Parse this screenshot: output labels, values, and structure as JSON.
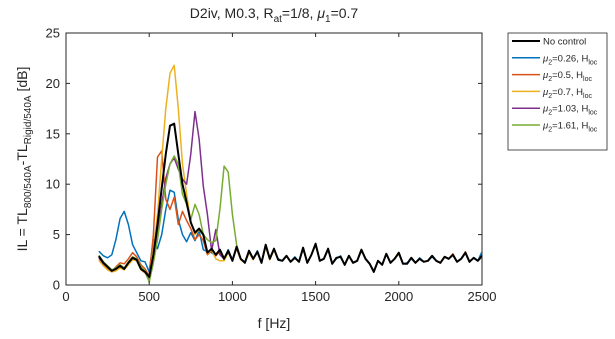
{
  "chart_data": {
    "type": "line",
    "title": {
      "prefix": "D2iv, M0.3, R",
      "sub": "at",
      "middle": "=1/8, ",
      "mu": "μ",
      "mu_sub": "1",
      "suffix": "=0.7"
    },
    "xlabel": "f [Hz]",
    "ylabel": {
      "p1": "IL = TL",
      "s1": "800/540A",
      "p2": "-TL",
      "s2": "Rigid/540A",
      "p3": " [dB]"
    },
    "xlim": [
      0,
      2500
    ],
    "ylim": [
      0,
      25
    ],
    "x_ticks": [
      "0",
      "500",
      "1000",
      "1500",
      "2000",
      "2500"
    ],
    "y_ticks": [
      "0",
      "5",
      "10",
      "15",
      "20",
      "25"
    ],
    "grid": false,
    "legend_position": "outside-right",
    "x": [
      200,
      225,
      250,
      275,
      300,
      325,
      350,
      375,
      400,
      425,
      450,
      475,
      500,
      525,
      550,
      575,
      600,
      625,
      650,
      675,
      700,
      725,
      750,
      775,
      800,
      825,
      850,
      875,
      900,
      925,
      950,
      975,
      1000,
      1025,
      1050,
      1075,
      1100,
      1125,
      1150,
      1175,
      1200,
      1225,
      1250,
      1275,
      1300,
      1325,
      1350,
      1375,
      1400,
      1425,
      1450,
      1475,
      1500,
      1525,
      1550,
      1575,
      1600,
      1625,
      1650,
      1675,
      1700,
      1725,
      1750,
      1775,
      1800,
      1825,
      1850,
      1875,
      1900,
      1925,
      1950,
      1975,
      2000,
      2025,
      2050,
      2075,
      2100,
      2125,
      2150,
      2175,
      2200,
      2225,
      2250,
      2275,
      2300,
      2325,
      2350,
      2375,
      2400,
      2425,
      2450,
      2475,
      2500
    ],
    "series": [
      {
        "name": "No control",
        "color": "#000000",
        "width": 2,
        "values": [
          2.8,
          2.2,
          1.8,
          1.4,
          1.6,
          1.9,
          1.6,
          2.2,
          2.7,
          2.5,
          1.6,
          1.3,
          0.8,
          3.0,
          6.0,
          9.6,
          13.0,
          15.8,
          16.0,
          13.0,
          10.0,
          8.2,
          6.2,
          5.2,
          5.6,
          5.0,
          3.2,
          3.6,
          3.0,
          3.5,
          2.6,
          3.4,
          2.4,
          3.8,
          2.6,
          2.2,
          3.4,
          2.6,
          3.3,
          2.2,
          4.0,
          2.6,
          3.6,
          2.5,
          2.4,
          2.9,
          2.3,
          2.7,
          2.3,
          3.7,
          2.2,
          3.0,
          4.1,
          2.4,
          2.6,
          3.6,
          2.1,
          2.7,
          2.8,
          2.0,
          2.9,
          2.2,
          2.4,
          3.5,
          2.6,
          2.1,
          1.3,
          2.4,
          2.0,
          3.1,
          2.2,
          2.6,
          3.2,
          2.1,
          2.1,
          2.7,
          2.2,
          2.6,
          2.3,
          2.4,
          2.9,
          2.4,
          2.2,
          2.8,
          2.6,
          3.0,
          2.3,
          2.6,
          3.2,
          2.3,
          2.7,
          2.4,
          2.9
        ]
      },
      {
        "name": "μ2=0.26, Hloc",
        "label": {
          "pre": "=0.26, H"
        },
        "color": "#0072BD",
        "width": 1.5,
        "values": [
          3.3,
          2.9,
          2.7,
          3.0,
          4.5,
          6.6,
          7.3,
          6.0,
          4.0,
          3.2,
          2.4,
          2.3,
          1.3,
          4.5,
          3.6,
          5.0,
          7.5,
          9.4,
          9.2,
          6.5,
          5.0,
          4.3,
          5.2,
          4.4,
          5.4,
          3.5,
          3.3,
          3.2,
          2.9,
          3.4,
          2.6,
          3.5,
          2.5,
          3.7,
          2.6,
          2.3,
          3.3,
          2.6,
          3.4,
          2.2,
          3.9,
          2.6,
          3.5,
          2.6,
          2.4,
          2.9,
          2.3,
          2.8,
          2.3,
          3.6,
          2.2,
          3.0,
          4.0,
          2.4,
          2.6,
          3.5,
          2.1,
          2.6,
          2.9,
          2.0,
          2.9,
          2.2,
          2.4,
          3.4,
          2.6,
          2.1,
          1.4,
          2.4,
          2.0,
          3.1,
          2.2,
          2.6,
          3.1,
          2.1,
          2.2,
          2.6,
          2.2,
          2.7,
          2.3,
          2.4,
          2.8,
          2.4,
          2.2,
          2.8,
          2.6,
          3.0,
          2.3,
          2.6,
          3.2,
          2.3,
          2.7,
          2.4,
          3.3
        ]
      },
      {
        "name": "μ2=0.5, Hloc",
        "label": {
          "pre": "=0.5, H"
        },
        "color": "#D95319",
        "width": 1.5,
        "values": [
          2.6,
          2.0,
          1.6,
          1.3,
          1.8,
          2.2,
          2.1,
          2.6,
          3.2,
          2.8,
          2.0,
          1.6,
          0.9,
          5.0,
          12.7,
          13.3,
          8.5,
          7.5,
          8.7,
          6.0,
          7.3,
          6.4,
          5.6,
          4.5,
          5.0,
          4.4,
          3.0,
          3.4,
          2.9,
          3.3,
          2.5,
          3.3,
          2.4,
          3.7,
          2.6,
          2.2,
          3.2,
          2.6,
          3.3,
          2.2,
          3.8,
          2.6,
          3.5,
          2.5,
          2.4,
          2.9,
          2.3,
          2.7,
          2.3,
          3.6,
          2.2,
          3.0,
          4.0,
          2.4,
          2.6,
          3.6,
          2.1,
          2.7,
          2.8,
          2.0,
          2.9,
          2.2,
          2.4,
          3.5,
          2.6,
          2.1,
          1.4,
          2.4,
          2.0,
          3.1,
          2.2,
          2.6,
          3.1,
          2.1,
          2.1,
          2.7,
          2.2,
          2.6,
          2.3,
          2.4,
          2.9,
          2.4,
          2.2,
          2.8,
          2.6,
          3.1,
          2.3,
          2.6,
          3.3,
          2.3,
          2.7,
          2.4,
          2.8
        ]
      },
      {
        "name": "μ2=0.7, Hloc",
        "label": {
          "pre": "=0.7, H"
        },
        "color": "#EDB120",
        "width": 1.5,
        "values": [
          2.4,
          1.9,
          1.5,
          1.3,
          1.4,
          1.7,
          1.5,
          2.0,
          2.5,
          2.4,
          1.5,
          1.2,
          0.7,
          3.5,
          7.0,
          12.5,
          17.5,
          21.0,
          21.8,
          17.5,
          12.0,
          9.0,
          6.3,
          5.0,
          5.5,
          4.9,
          3.1,
          3.5,
          2.6,
          2.4,
          2.4,
          3.2,
          2.4,
          3.6,
          2.5,
          2.2,
          3.2,
          2.5,
          3.3,
          2.2,
          3.8,
          2.5,
          3.5,
          2.5,
          2.4,
          2.9,
          2.3,
          2.7,
          2.3,
          3.6,
          2.2,
          3.0,
          4.0,
          2.4,
          2.6,
          3.6,
          2.1,
          2.7,
          2.8,
          2.0,
          2.9,
          2.2,
          2.4,
          3.4,
          2.6,
          2.1,
          1.3,
          2.4,
          2.0,
          3.1,
          2.2,
          2.6,
          3.1,
          2.1,
          2.1,
          2.7,
          2.2,
          2.6,
          2.3,
          2.4,
          2.9,
          2.4,
          2.2,
          2.8,
          2.6,
          3.0,
          2.3,
          2.6,
          3.2,
          2.3,
          2.7,
          2.4,
          2.8
        ]
      },
      {
        "name": "μ2=1.03, Hloc",
        "label": {
          "pre": "=1.03, H"
        },
        "color": "#7E2F8E",
        "width": 1.5,
        "values": [
          2.7,
          2.1,
          1.8,
          1.4,
          1.6,
          1.9,
          1.6,
          2.2,
          2.7,
          2.5,
          1.7,
          1.3,
          0.4,
          2.5,
          5.0,
          8.0,
          10.6,
          12.0,
          12.6,
          11.5,
          10.5,
          10.0,
          13.0,
          17.2,
          14.5,
          9.8,
          7.0,
          3.4,
          5.5,
          3.0,
          2.6,
          3.3,
          2.4,
          3.7,
          2.6,
          2.2,
          3.3,
          2.6,
          3.3,
          2.2,
          3.9,
          2.6,
          3.6,
          2.5,
          2.4,
          2.9,
          2.3,
          2.7,
          2.3,
          3.7,
          2.2,
          3.0,
          4.1,
          2.4,
          2.6,
          3.6,
          2.1,
          2.7,
          2.8,
          2.0,
          2.9,
          2.2,
          2.4,
          3.5,
          2.6,
          2.1,
          1.3,
          2.4,
          2.0,
          3.1,
          2.2,
          2.6,
          3.2,
          2.1,
          2.1,
          2.7,
          2.2,
          2.6,
          2.3,
          2.4,
          2.9,
          2.4,
          2.2,
          2.8,
          2.6,
          3.0,
          2.3,
          2.6,
          3.2,
          2.3,
          2.7,
          2.4,
          2.8
        ]
      },
      {
        "name": "μ2=1.61, Hloc",
        "label": {
          "pre": "=1.61, H"
        },
        "color": "#77AC30",
        "width": 1.5,
        "values": [
          2.9,
          2.3,
          1.9,
          1.5,
          1.7,
          2.0,
          1.7,
          2.3,
          2.8,
          2.6,
          1.8,
          1.4,
          0.3,
          2.2,
          4.5,
          7.5,
          10.0,
          12.0,
          12.8,
          12.0,
          9.0,
          8.0,
          6.5,
          8.0,
          7.0,
          5.0,
          4.5,
          4.2,
          4.4,
          7.5,
          11.8,
          11.2,
          7.0,
          4.0,
          2.6,
          2.2,
          3.3,
          2.6,
          3.3,
          2.2,
          3.9,
          2.6,
          3.6,
          2.5,
          2.4,
          2.9,
          2.3,
          2.7,
          2.3,
          3.6,
          2.2,
          3.0,
          4.0,
          2.4,
          2.6,
          3.6,
          2.1,
          2.7,
          2.8,
          2.0,
          2.9,
          2.2,
          2.4,
          3.5,
          2.6,
          2.1,
          1.3,
          2.4,
          2.0,
          3.1,
          2.2,
          2.6,
          3.2,
          2.1,
          2.1,
          2.7,
          2.2,
          2.6,
          2.3,
          2.4,
          2.9,
          2.4,
          2.2,
          2.8,
          2.6,
          3.0,
          2.3,
          2.6,
          3.2,
          2.3,
          2.7,
          2.4,
          2.8
        ]
      }
    ],
    "legend": {
      "mu": "μ",
      "mu_sub": "2",
      "loc_sub": "loc"
    }
  }
}
